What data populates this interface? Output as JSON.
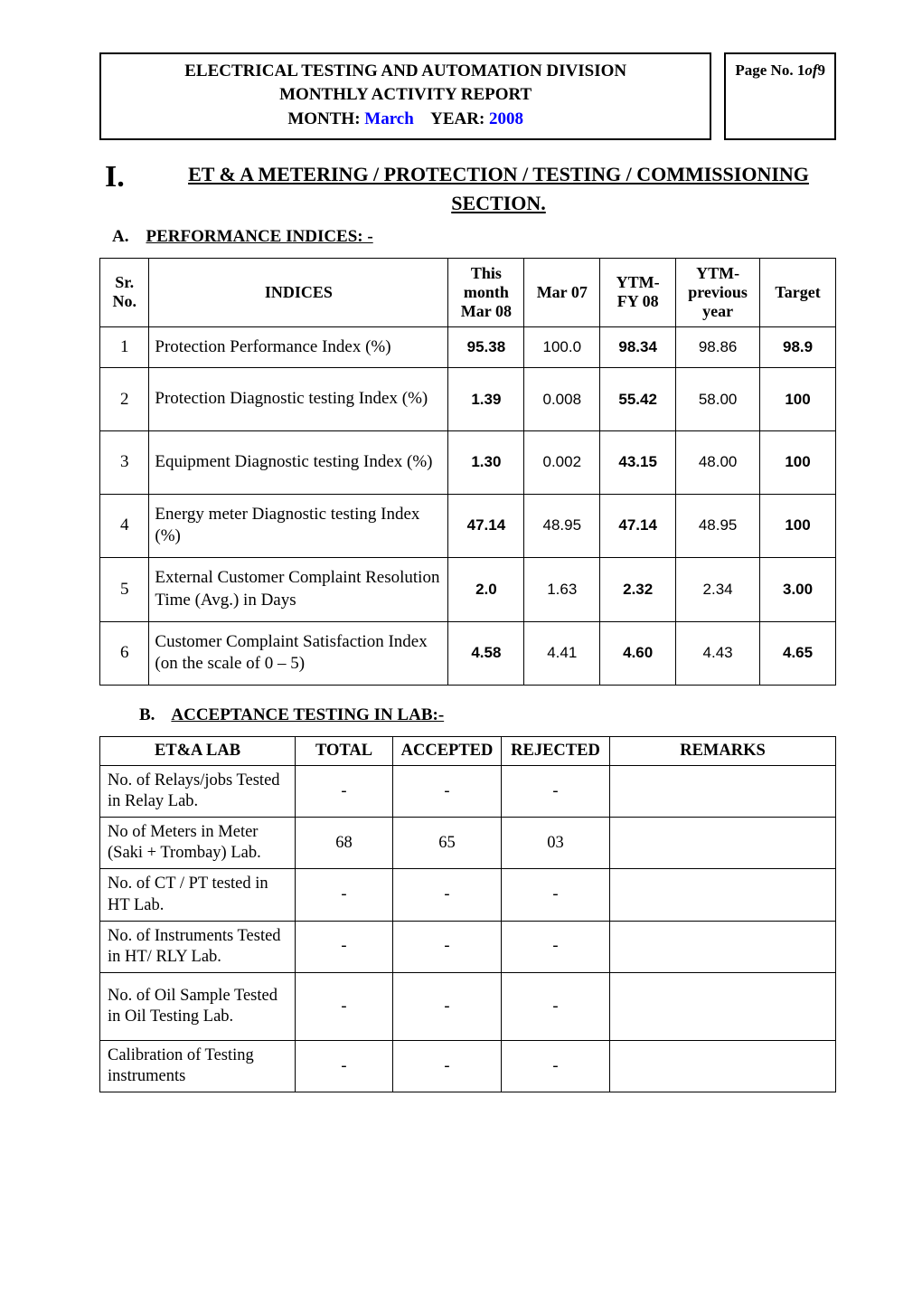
{
  "header": {
    "title_line1": "ELECTRICAL TESTING AND AUTOMATION DIVISION",
    "title_line2": "MONTHLY ACTIVITY REPORT",
    "month_label": "MONTH:",
    "month_value": "March",
    "year_label": "YEAR:",
    "year_value": "2008",
    "pageno_prefix": "Page No. 1 ",
    "pageno_of": "of",
    "pageno_total": "  9"
  },
  "section1": {
    "roman": "I.",
    "title_line1": "ET & A  METERING / PROTECTION / TESTING / COMMISSIONING",
    "title_line2": "SECTION."
  },
  "perf": {
    "label_letter": "A.",
    "label_text": "PERFORMANCE INDICES: -",
    "cols": {
      "sr": "Sr. No.",
      "indices": "INDICES",
      "this_month": "This month Mar 08",
      "mar07": "Mar 07",
      "ytm08": "YTM-FY 08",
      "ytm_prev": "YTM-previous year",
      "target": "Target"
    },
    "rows": [
      {
        "sr": "1",
        "ind": "Protection Performance Index (%)",
        "m08": "95.38",
        "m07": "100.0",
        "y08": "98.34",
        "yprev": "98.86",
        "tgt": "98.9",
        "tall": false
      },
      {
        "sr": "2",
        "ind": "Protection Diagnostic testing Index (%)",
        "m08": "1.39",
        "m07": "0.008",
        "y08": "55.42",
        "yprev": "58.00",
        "tgt": "100",
        "tall": true
      },
      {
        "sr": "3",
        "ind": "Equipment Diagnostic testing Index (%)",
        "m08": "1.30",
        "m07": "0.002",
        "y08": "43.15",
        "yprev": "48.00",
        "tgt": "100",
        "tall": true
      },
      {
        "sr": "4",
        "ind": "Energy meter Diagnostic testing Index (%)",
        "m08": "47.14",
        "m07": "48.95",
        "y08": "47.14",
        "yprev": "48.95",
        "tgt": "100",
        "tall": false
      },
      {
        "sr": "5",
        "ind": "External Customer Complaint Resolution Time (Avg.) in Days",
        "m08": "2.0",
        "m07": "1.63",
        "y08": "2.32",
        "yprev": "2.34",
        "tgt": "3.00",
        "tall": false
      },
      {
        "sr": "6",
        "ind": "Customer Complaint Satisfaction Index  (on the scale of 0 – 5)",
        "m08": "4.58",
        "m07": "4.41",
        "y08": "4.60",
        "yprev": "4.43",
        "tgt": "4.65",
        "tall": false
      }
    ]
  },
  "lab": {
    "label_letter": "B.",
    "label_text": "ACCEPTANCE TESTING IN  LAB:-",
    "cols": {
      "lab": "ET&A LAB",
      "total": "TOTAL",
      "accepted": "ACCEPTED",
      "rejected": "REJECTED",
      "remarks": "REMARKS"
    },
    "rows": [
      {
        "lbl": "No. of Relays/jobs Tested in Relay Lab.",
        "total": "-",
        "acc": "-",
        "rej": "-",
        "rem": "",
        "tall": false
      },
      {
        "lbl": "No of Meters in Meter (Saki + Trombay) Lab.",
        "total": "68",
        "acc": "65",
        "rej": "03",
        "rem": "",
        "tall": false
      },
      {
        "lbl": "No. of CT / PT tested in HT Lab.",
        "total": "-",
        "acc": "-",
        "rej": "-",
        "rem": "",
        "tall": false
      },
      {
        "lbl": "No. of  Instruments  Tested in HT/ RLY Lab.",
        "total": "-",
        "acc": "-",
        "rej": "-",
        "rem": "",
        "tall": false
      },
      {
        "lbl": "No. of Oil Sample Tested in Oil Testing Lab.",
        "total": "-",
        "acc": "-",
        "rej": "-",
        "rem": "",
        "tall": true
      },
      {
        "lbl": "Calibration of Testing instruments",
        "total": "-",
        "acc": "-",
        "rej": "-",
        "rem": "",
        "tall": false
      }
    ]
  },
  "style": {
    "colors": {
      "text": "#000000",
      "blue": "#0000ff",
      "border": "#000000",
      "background": "#ffffff"
    },
    "fonts": {
      "serif": "Times New Roman",
      "sans": "Arial"
    }
  }
}
